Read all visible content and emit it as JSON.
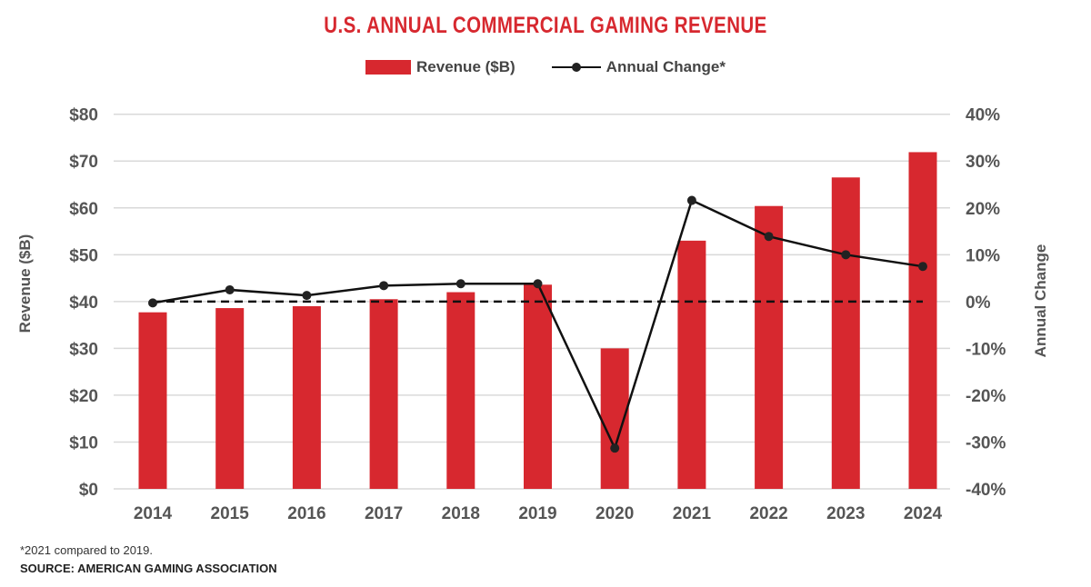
{
  "chart_data": {
    "type": "bar+line",
    "title": "U.S. ANNUAL COMMERCIAL GAMING REVENUE",
    "categories": [
      "2014",
      "2015",
      "2016",
      "2017",
      "2018",
      "2019",
      "2020",
      "2021",
      "2022",
      "2023",
      "2024"
    ],
    "series": [
      {
        "name": "Revenue ($B)",
        "type": "bar",
        "axis": "left",
        "color": "#d7282f",
        "values": [
          37.7,
          38.6,
          39.0,
          40.5,
          42.0,
          43.6,
          30.0,
          53.0,
          60.4,
          66.5,
          71.9
        ]
      },
      {
        "name": "Annual Change*",
        "type": "line",
        "axis": "right",
        "color": "#111111",
        "values": [
          -0.3,
          2.5,
          1.3,
          3.4,
          3.8,
          3.8,
          -31.3,
          21.6,
          13.9,
          10.0,
          7.5
        ]
      }
    ],
    "ylabel": "Revenue ($B)",
    "ylabel_right": "Annual Change",
    "ylim": [
      0,
      80
    ],
    "ylim_right": [
      -40,
      40
    ],
    "yticks": [
      "$0",
      "$10",
      "$20",
      "$30",
      "$40",
      "$50",
      "$60",
      "$70",
      "$80"
    ],
    "yticks_right": [
      "-40%",
      "-30%",
      "-20%",
      "-10%",
      "0%",
      "10%",
      "20%",
      "30%",
      "40%"
    ],
    "reference_line": {
      "axis": "right",
      "value": 0,
      "style": "dashed"
    },
    "grid": true,
    "legend": "top-center",
    "footnote": "*2021 compared to 2019.",
    "source": "SOURCE: AMERICAN GAMING ASSOCIATION"
  }
}
